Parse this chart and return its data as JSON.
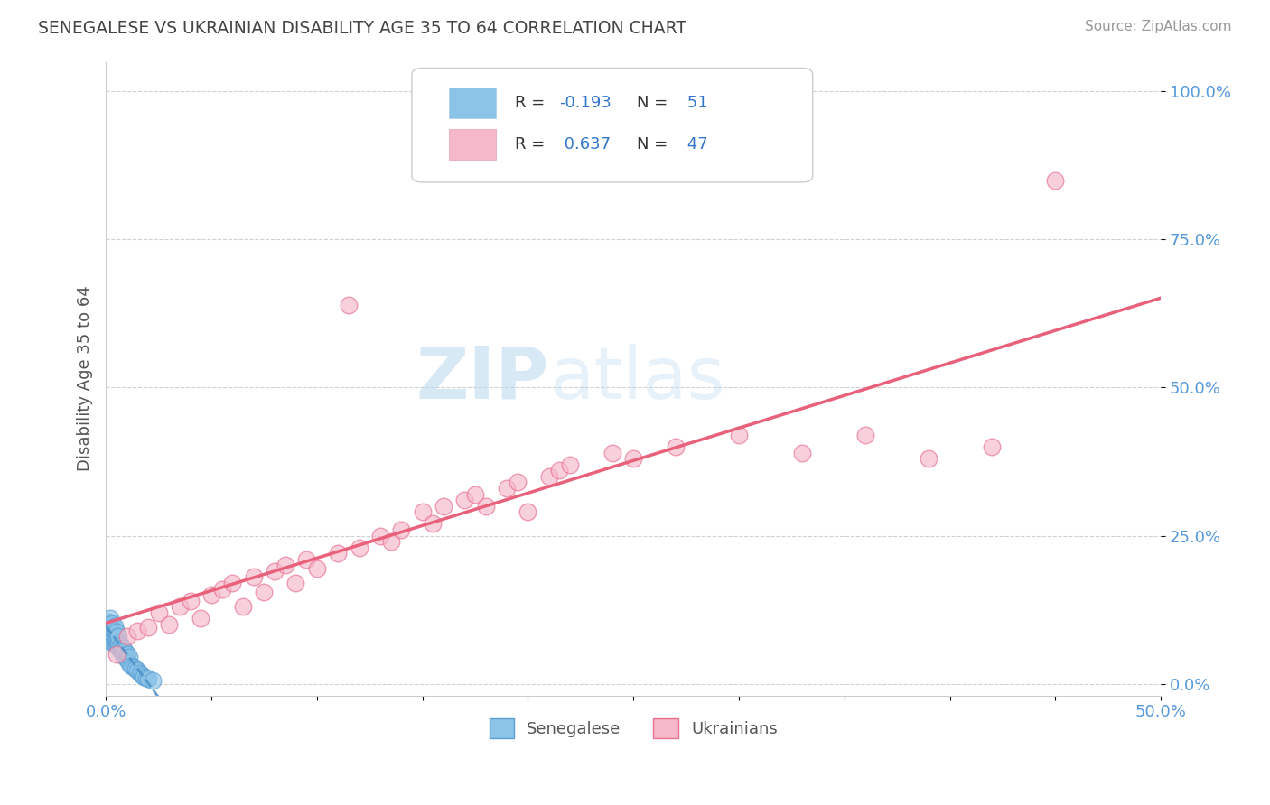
{
  "title": "SENEGALESE VS UKRAINIAN DISABILITY AGE 35 TO 64 CORRELATION CHART",
  "source": "Source: ZipAtlas.com",
  "ylabel_label": "Disability Age 35 to 64",
  "xlim": [
    0.0,
    0.5
  ],
  "ylim": [
    -0.02,
    1.05
  ],
  "xtick_positions": [
    0.0,
    0.05,
    0.1,
    0.15,
    0.2,
    0.25,
    0.3,
    0.35,
    0.4,
    0.45,
    0.5
  ],
  "xtick_labels": [
    "0.0%",
    "",
    "",
    "",
    "",
    "",
    "",
    "",
    "",
    "",
    "50.0%"
  ],
  "ytick_positions": [
    0.0,
    0.25,
    0.5,
    0.75,
    1.0
  ],
  "ytick_labels": [
    "0.0%",
    "25.0%",
    "50.0%",
    "75.0%",
    "100.0%"
  ],
  "color_senegalese": "#8cc4e8",
  "color_senegalese_edge": "#5a9fd4",
  "color_ukrainians": "#f5b8c8",
  "color_ukrainians_edge": "#e87090",
  "color_line_senegalese": "#4a90c8",
  "color_line_ukrainians": "#e8607a",
  "watermark_zip": "ZIP",
  "watermark_atlas": "atlas",
  "background_color": "#ffffff",
  "grid_color": "#d0d0d0",
  "title_color": "#444444",
  "source_color": "#999999",
  "axis_label_color": "#555555",
  "tick_label_color": "#5599dd",
  "legend_text_color_label": "#333333",
  "legend_text_color_value": "#3377cc",
  "senegalese_x": [
    0.0,
    0.0,
    0.0,
    0.001,
    0.001,
    0.001,
    0.001,
    0.001,
    0.002,
    0.002,
    0.002,
    0.002,
    0.002,
    0.002,
    0.003,
    0.003,
    0.003,
    0.003,
    0.003,
    0.004,
    0.004,
    0.004,
    0.004,
    0.004,
    0.005,
    0.005,
    0.005,
    0.005,
    0.006,
    0.006,
    0.006,
    0.007,
    0.007,
    0.008,
    0.008,
    0.009,
    0.009,
    0.01,
    0.01,
    0.011,
    0.011,
    0.012,
    0.013,
    0.014,
    0.015,
    0.016,
    0.017,
    0.018,
    0.019,
    0.02,
    0.022
  ],
  "senegalese_y": [
    0.085,
    0.09,
    0.095,
    0.08,
    0.088,
    0.092,
    0.098,
    0.105,
    0.075,
    0.082,
    0.09,
    0.095,
    0.1,
    0.11,
    0.07,
    0.078,
    0.085,
    0.093,
    0.102,
    0.068,
    0.075,
    0.082,
    0.09,
    0.097,
    0.065,
    0.072,
    0.08,
    0.088,
    0.06,
    0.07,
    0.08,
    0.055,
    0.065,
    0.05,
    0.06,
    0.045,
    0.055,
    0.04,
    0.05,
    0.035,
    0.045,
    0.03,
    0.028,
    0.025,
    0.022,
    0.018,
    0.015,
    0.012,
    0.01,
    0.008,
    0.005
  ],
  "ukrainians_x": [
    0.005,
    0.01,
    0.015,
    0.02,
    0.025,
    0.03,
    0.035,
    0.04,
    0.045,
    0.05,
    0.055,
    0.06,
    0.065,
    0.07,
    0.075,
    0.08,
    0.085,
    0.09,
    0.095,
    0.1,
    0.11,
    0.115,
    0.12,
    0.13,
    0.135,
    0.14,
    0.15,
    0.155,
    0.16,
    0.17,
    0.175,
    0.18,
    0.19,
    0.195,
    0.2,
    0.21,
    0.215,
    0.22,
    0.24,
    0.25,
    0.27,
    0.3,
    0.33,
    0.36,
    0.39,
    0.42,
    0.45
  ],
  "ukrainians_y": [
    0.05,
    0.08,
    0.09,
    0.095,
    0.12,
    0.1,
    0.13,
    0.14,
    0.11,
    0.15,
    0.16,
    0.17,
    0.13,
    0.18,
    0.155,
    0.19,
    0.2,
    0.17,
    0.21,
    0.195,
    0.22,
    0.64,
    0.23,
    0.25,
    0.24,
    0.26,
    0.29,
    0.27,
    0.3,
    0.31,
    0.32,
    0.3,
    0.33,
    0.34,
    0.29,
    0.35,
    0.36,
    0.37,
    0.39,
    0.38,
    0.4,
    0.42,
    0.39,
    0.42,
    0.38,
    0.4,
    0.85
  ]
}
